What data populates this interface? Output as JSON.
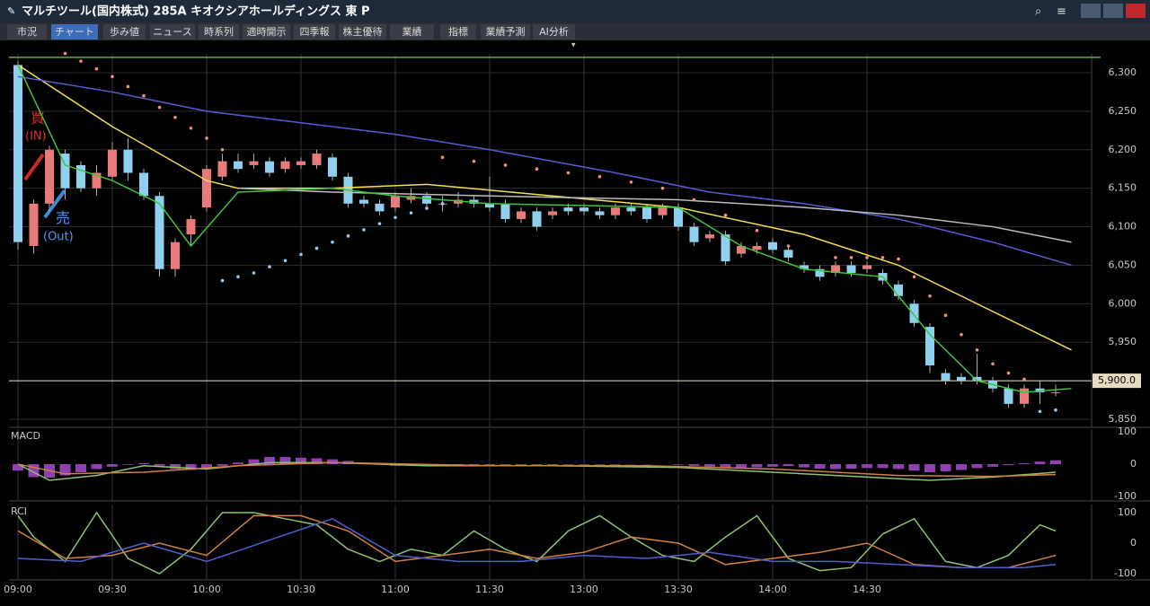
{
  "window": {
    "title": "マルチツール(国内株式) 285A キオクシアホールディングス 東 P",
    "tabs": [
      "市況",
      "チャート",
      "歩み値",
      "ニュース",
      "時系列",
      "適時開示",
      "四季報",
      "株主優待",
      "業績",
      "指標",
      "業績予測",
      "AI分析"
    ],
    "active_tab": 1
  },
  "chart_data": [
    {
      "type": "candlestick",
      "up_color": "#e87a7a",
      "down_color": "#8fd0ee",
      "open": [
        6310,
        6075,
        6130,
        6195,
        6180,
        6150,
        6165,
        6200,
        6170,
        6140,
        6045,
        6090,
        6125,
        6165,
        6185,
        6180,
        6185,
        6175,
        6180,
        6180,
        6190,
        6165,
        6135,
        6130,
        6125,
        6135,
        6140,
        6130,
        6130,
        6135,
        6130,
        6130,
        6110,
        6120,
        6115,
        6125,
        6125,
        6120,
        6115,
        6125,
        6125,
        6115,
        6125,
        6100,
        6085,
        6090,
        6065,
        6070,
        6080,
        6070,
        6050,
        6045,
        6040,
        6050,
        6045,
        6040,
        6025,
        6000,
        5970,
        5910,
        5905,
        5905,
        5900,
        5890,
        5870,
        5890,
        5885
      ],
      "high": [
        6315,
        6135,
        6205,
        6200,
        6185,
        6180,
        6210,
        6215,
        6175,
        6145,
        6085,
        6115,
        6180,
        6195,
        6195,
        6195,
        6190,
        6190,
        6190,
        6200,
        6195,
        6170,
        6140,
        6135,
        6145,
        6150,
        6145,
        6140,
        6145,
        6140,
        6165,
        6135,
        6125,
        6125,
        6125,
        6130,
        6130,
        6125,
        6130,
        6130,
        6130,
        6130,
        6130,
        6105,
        6095,
        6095,
        6080,
        6080,
        6085,
        6075,
        6055,
        6050,
        6055,
        6055,
        6055,
        6045,
        6030,
        6005,
        5975,
        5915,
        5910,
        5935,
        5905,
        5895,
        5895,
        5900,
        5895
      ],
      "low": [
        6070,
        6065,
        6120,
        6135,
        6145,
        6140,
        6160,
        6160,
        6135,
        6035,
        6035,
        6075,
        6120,
        6160,
        6170,
        6175,
        6165,
        6170,
        6175,
        6175,
        6160,
        6125,
        6125,
        6115,
        6120,
        6130,
        6125,
        6120,
        6125,
        6125,
        6120,
        6105,
        6105,
        6095,
        6110,
        6115,
        6115,
        6110,
        6110,
        6115,
        6105,
        6110,
        6095,
        6075,
        6080,
        6050,
        6060,
        6065,
        6065,
        6055,
        6040,
        6030,
        6035,
        6035,
        6040,
        6025,
        6005,
        5970,
        5910,
        5895,
        5895,
        5895,
        5885,
        5865,
        5865,
        5870,
        5880
      ],
      "close": [
        6080,
        6130,
        6200,
        6150,
        6150,
        6170,
        6200,
        6170,
        6140,
        6045,
        6080,
        6110,
        6175,
        6185,
        6175,
        6185,
        6170,
        6185,
        6185,
        6195,
        6165,
        6130,
        6130,
        6120,
        6140,
        6140,
        6130,
        6130,
        6135,
        6130,
        6125,
        6110,
        6120,
        6100,
        6120,
        6120,
        6120,
        6115,
        6125,
        6120,
        6110,
        6125,
        6100,
        6080,
        6090,
        6055,
        6075,
        6075,
        6070,
        6060,
        6045,
        6035,
        6050,
        6040,
        6050,
        6030,
        6010,
        5975,
        5920,
        5900,
        5900,
        5900,
        5890,
        5870,
        5890,
        5885,
        5885
      ],
      "series": [
        {
          "style": "line",
          "color": "#f0e050",
          "x": [
            0,
            6,
            12,
            14,
            20,
            26,
            34,
            42,
            50,
            56,
            60,
            67
          ],
          "values": [
            6310,
            6230,
            6160,
            6150,
            6150,
            6155,
            6140,
            6125,
            6090,
            6050,
            6010,
            5940
          ]
        },
        {
          "style": "line",
          "color": "#5a5ad8",
          "x": [
            0,
            6,
            12,
            18,
            24,
            30,
            38,
            44,
            50,
            56,
            62,
            67
          ],
          "values": [
            6295,
            6275,
            6250,
            6235,
            6220,
            6200,
            6170,
            6145,
            6130,
            6110,
            6080,
            6050
          ]
        },
        {
          "style": "line",
          "color": "#bdbdbd",
          "x": [
            14,
            20,
            30,
            42,
            50,
            56,
            62,
            67
          ],
          "values": [
            6150,
            6145,
            6140,
            6135,
            6125,
            6115,
            6100,
            6080
          ]
        },
        {
          "style": "line",
          "color": "#3ec43e",
          "x": [
            0,
            3,
            6,
            9,
            11,
            14,
            20,
            24,
            30,
            42,
            46,
            50,
            55,
            58,
            61,
            64,
            67
          ],
          "values": [
            6310,
            6180,
            6160,
            6130,
            6075,
            6145,
            6150,
            6140,
            6130,
            6125,
            6075,
            6045,
            6035,
            5960,
            5900,
            5885,
            5890
          ]
        },
        {
          "style": "dots",
          "color": "#f09080",
          "x": [
            3,
            4,
            5,
            6,
            7,
            8,
            9,
            10,
            11,
            12,
            13,
            27,
            29,
            31,
            33,
            35,
            37,
            39,
            41,
            43,
            45,
            47,
            49,
            52,
            53,
            54,
            55,
            56,
            57,
            58,
            59,
            60,
            61,
            62,
            63,
            64
          ],
          "values": [
            6325,
            6315,
            6305,
            6295,
            6282,
            6270,
            6255,
            6242,
            6228,
            6215,
            6200,
            6190,
            6185,
            6180,
            6175,
            6170,
            6165,
            6158,
            6150,
            6135,
            6115,
            6095,
            6075,
            6060,
            6060,
            6060,
            6060,
            6058,
            6035,
            6010,
            5985,
            5960,
            5940,
            5922,
            5910,
            5902
          ]
        },
        {
          "style": "dots",
          "color": "#90d0f0",
          "x": [
            13,
            14,
            15,
            16,
            17,
            18,
            19,
            20,
            21,
            22,
            23,
            24,
            25,
            26,
            27,
            65,
            66
          ],
          "values": [
            6030,
            6035,
            6040,
            6048,
            6056,
            6064,
            6072,
            6080,
            6088,
            6096,
            6104,
            6112,
            6118,
            6124,
            6130,
            5860,
            5862
          ]
        }
      ],
      "limit_line": 6320,
      "price_line": {
        "value": 5900,
        "label": "5,900.0"
      },
      "annotations": {
        "buy": "買",
        "buy_sub": "(IN)",
        "sell": "売",
        "sell_sub": "(Out)"
      },
      "xlim": [
        -0.5,
        67.5
      ],
      "xticks": [
        {
          "value": 0,
          "label": "09:00"
        },
        {
          "value": 6,
          "label": "09:30"
        },
        {
          "value": 12,
          "label": "10:00"
        },
        {
          "value": 18,
          "label": "10:30"
        },
        {
          "value": 24,
          "label": "11:00"
        },
        {
          "value": 30,
          "label": "11:30"
        },
        {
          "value": 36,
          "label": "13:00"
        },
        {
          "value": 42,
          "label": "13:30"
        },
        {
          "value": 48,
          "label": "14:00"
        },
        {
          "value": 54,
          "label": "14:30"
        }
      ],
      "ylim": [
        5850,
        6300
      ],
      "yticks": [
        {
          "value": 5850,
          "label": "5,850"
        },
        {
          "value": 5900,
          "label": "5,900"
        },
        {
          "value": 5950,
          "label": "5,950"
        },
        {
          "value": 6000,
          "label": "6,000"
        },
        {
          "value": 6050,
          "label": "6,050"
        },
        {
          "value": 6100,
          "label": "6,100"
        },
        {
          "value": 6150,
          "label": "6,150"
        },
        {
          "value": 6200,
          "label": "6,200"
        },
        {
          "value": 6250,
          "label": "6,250"
        },
        {
          "value": 6300,
          "label": "6,300"
        }
      ],
      "grid": true
    },
    {
      "type": "macd",
      "title": "MACD",
      "ylim": [
        -100,
        100
      ],
      "yticks": [
        100,
        0,
        -100
      ],
      "histogram": {
        "color": "#9040b0",
        "values": [
          -20,
          -40,
          -42,
          -35,
          -25,
          -15,
          -8,
          -2,
          3,
          -5,
          -15,
          -18,
          -12,
          -5,
          5,
          15,
          22,
          22,
          20,
          18,
          15,
          10,
          5,
          0,
          -5,
          -5,
          -5,
          -4,
          -3,
          -3,
          -3,
          -3,
          -4,
          -3,
          -3,
          -2,
          -2,
          -2,
          -2,
          -1,
          -1,
          0,
          -2,
          -5,
          -8,
          -10,
          -12,
          -10,
          -8,
          -6,
          -10,
          -14,
          -15,
          -14,
          -12,
          -12,
          -15,
          -20,
          -25,
          -22,
          -18,
          -12,
          -8,
          -3,
          3,
          8,
          12
        ]
      },
      "series": [
        {
          "style": "line",
          "color": "#90c070",
          "x": [
            0,
            2,
            5,
            8,
            12,
            16,
            20,
            26,
            34,
            42,
            48,
            54,
            58,
            62,
            66
          ],
          "values": [
            0,
            -50,
            -35,
            -5,
            -15,
            5,
            5,
            -5,
            -5,
            -10,
            -25,
            -40,
            -50,
            -40,
            -25
          ]
        },
        {
          "style": "line",
          "color": "#d08040",
          "x": [
            0,
            3,
            8,
            14,
            20,
            30,
            40,
            48,
            56,
            62,
            66
          ],
          "values": [
            0,
            -30,
            -25,
            -5,
            5,
            -5,
            -5,
            -15,
            -35,
            -38,
            -32
          ]
        }
      ]
    },
    {
      "type": "line",
      "title": "RCI",
      "ylim": [
        -100,
        100
      ],
      "yticks": [
        100,
        0,
        -100
      ],
      "series": [
        {
          "style": "line",
          "color": "#90c070",
          "x": [
            0,
            1,
            3,
            5,
            7,
            9,
            11,
            13,
            15,
            17,
            19,
            21,
            23,
            25,
            27,
            29,
            31,
            33,
            35,
            37,
            39,
            41,
            43,
            45,
            47,
            49,
            51,
            53,
            55,
            57,
            59,
            61,
            63,
            65,
            66
          ],
          "values": [
            90,
            20,
            -60,
            100,
            -50,
            -100,
            -20,
            100,
            100,
            80,
            60,
            -20,
            -60,
            -20,
            -40,
            40,
            -20,
            -60,
            40,
            90,
            20,
            -40,
            -60,
            20,
            90,
            -50,
            -90,
            -80,
            30,
            80,
            -60,
            -80,
            -40,
            60,
            40
          ]
        },
        {
          "style": "line",
          "color": "#d08040",
          "x": [
            0,
            3,
            6,
            9,
            12,
            15,
            18,
            21,
            24,
            27,
            30,
            33,
            36,
            39,
            42,
            45,
            48,
            51,
            54,
            57,
            60,
            63,
            66
          ],
          "values": [
            40,
            -50,
            -40,
            0,
            -40,
            90,
            90,
            40,
            -60,
            -40,
            -20,
            -50,
            -30,
            20,
            0,
            -70,
            -50,
            -30,
            0,
            -70,
            -80,
            -80,
            -40
          ]
        },
        {
          "style": "line",
          "color": "#5060d0",
          "x": [
            0,
            4,
            8,
            12,
            16,
            20,
            24,
            28,
            32,
            36,
            40,
            44,
            48,
            52,
            56,
            60,
            64,
            66
          ],
          "values": [
            -50,
            -60,
            0,
            -60,
            10,
            80,
            -40,
            -60,
            -60,
            -40,
            -50,
            -30,
            -60,
            -60,
            -70,
            -80,
            -80,
            -70
          ]
        }
      ]
    }
  ]
}
